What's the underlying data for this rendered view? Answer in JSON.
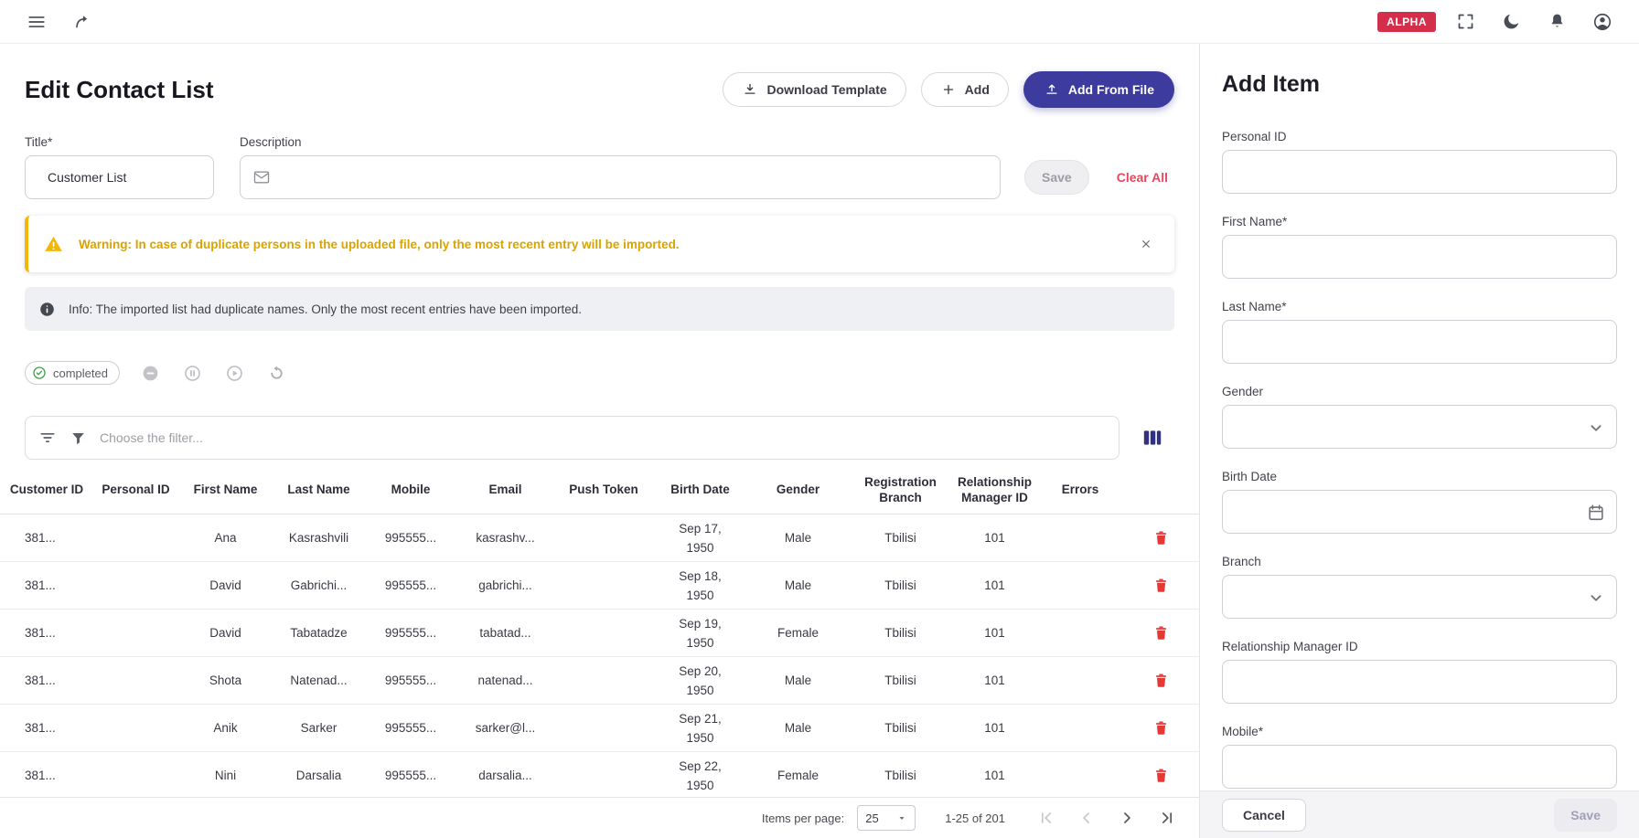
{
  "topbar": {
    "alpha_badge": "ALPHA"
  },
  "page": {
    "title": "Edit Contact List"
  },
  "actions": {
    "download_template": "Download Template",
    "add": "Add",
    "add_from_file": "Add From File",
    "save": "Save",
    "clear_all": "Clear All"
  },
  "form": {
    "title": {
      "label": "Title*",
      "value": "Customer List"
    },
    "description": {
      "label": "Description",
      "value": ""
    }
  },
  "banners": {
    "warning": "Warning: In case of duplicate persons in the uploaded file, only the most recent entry will be imported.",
    "info": "Info: The imported list had duplicate names. Only the most recent entries have been imported."
  },
  "status": {
    "label": "completed"
  },
  "filter": {
    "placeholder": "Choose the filter..."
  },
  "table": {
    "columns": [
      "Customer ID",
      "Personal ID",
      "First Name",
      "Last Name",
      "Mobile",
      "Email",
      "Push Token",
      "Birth Date",
      "Gender",
      "Registration Branch",
      "Relationship Manager ID",
      "Errors"
    ],
    "rows": [
      [
        "381...",
        "",
        "Ana",
        "Kasrashvili",
        "995555...",
        "kasrashv...",
        "",
        "Sep 17,\n1950",
        "Male",
        "Tbilisi",
        "101",
        ""
      ],
      [
        "381...",
        "",
        "David",
        "Gabrichi...",
        "995555...",
        "gabrichi...",
        "",
        "Sep 18,\n1950",
        "Male",
        "Tbilisi",
        "101",
        ""
      ],
      [
        "381...",
        "",
        "David",
        "Tabatadze",
        "995555...",
        "tabatad...",
        "",
        "Sep 19,\n1950",
        "Female",
        "Tbilisi",
        "101",
        ""
      ],
      [
        "381...",
        "",
        "Shota",
        "Natenad...",
        "995555...",
        "natenad...",
        "",
        "Sep 20,\n1950",
        "Male",
        "Tbilisi",
        "101",
        ""
      ],
      [
        "381...",
        "",
        "Anik",
        "Sarker",
        "995555...",
        "sarker@l...",
        "",
        "Sep 21,\n1950",
        "Male",
        "Tbilisi",
        "101",
        ""
      ],
      [
        "381...",
        "",
        "Nini",
        "Darsalia",
        "995555...",
        "darsalia...",
        "",
        "Sep 22,\n1950",
        "Female",
        "Tbilisi",
        "101",
        ""
      ]
    ]
  },
  "pagination": {
    "items_per_page_label": "Items per page:",
    "items_per_page_value": "25",
    "range": "1-25 of 201"
  },
  "panel": {
    "title": "Add Item",
    "fields": [
      {
        "label": "Personal ID",
        "type": "text"
      },
      {
        "label": "First Name*",
        "type": "text"
      },
      {
        "label": "Last Name*",
        "type": "text"
      },
      {
        "label": "Gender",
        "type": "select"
      },
      {
        "label": "Birth Date",
        "type": "date"
      },
      {
        "label": "Branch",
        "type": "select"
      },
      {
        "label": "Relationship Manager ID",
        "type": "text"
      },
      {
        "label": "Mobile*",
        "type": "text"
      }
    ],
    "cancel": "Cancel",
    "save": "Save"
  },
  "colors": {
    "primary": "#3d3b9e",
    "alpha_badge": "#d32f4b",
    "warning_accent": "#f2b705",
    "warning_text": "#d9a400",
    "danger_link": "#e5485e",
    "delete_icon": "#e53935",
    "success": "#43a047"
  }
}
